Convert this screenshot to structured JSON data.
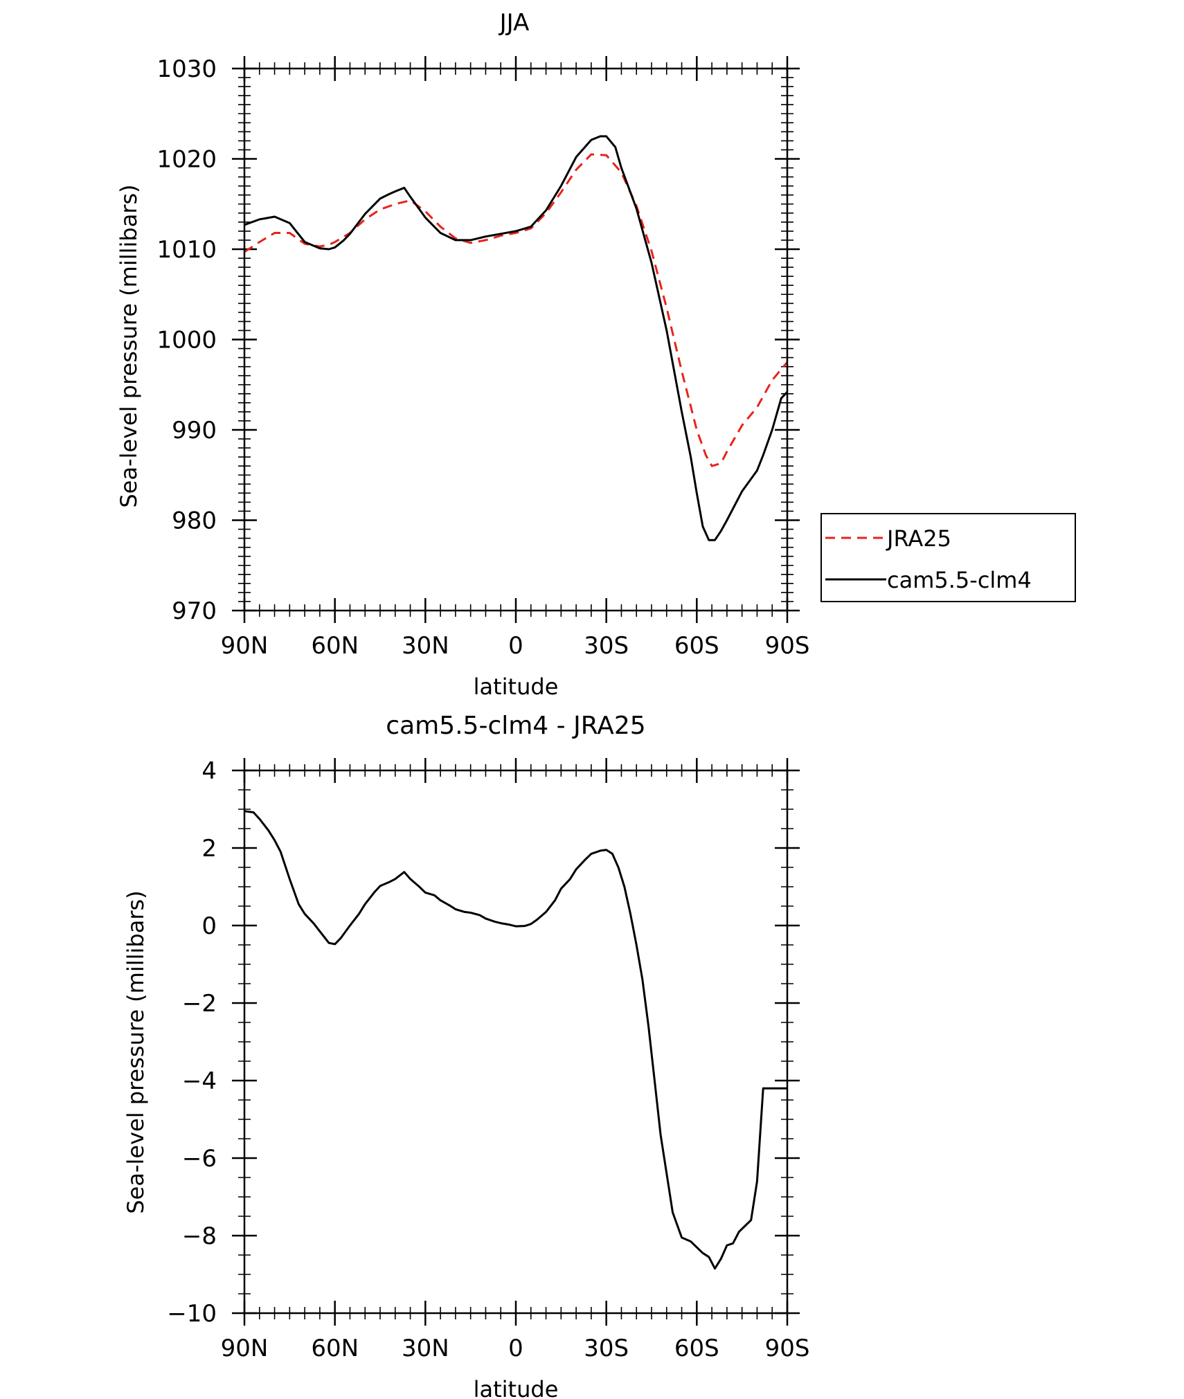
{
  "chart_data": [
    {
      "type": "line",
      "title": "JJA",
      "xlabel": "latitude",
      "ylabel": "Sea-level pressure (millibars)",
      "xlim": [
        90,
        -90
      ],
      "ylim": [
        970,
        1030
      ],
      "x_ticks": [
        {
          "value": 90,
          "label": "90N"
        },
        {
          "value": 60,
          "label": "60N"
        },
        {
          "value": 30,
          "label": "30N"
        },
        {
          "value": 0,
          "label": "0"
        },
        {
          "value": -30,
          "label": "30S"
        },
        {
          "value": -60,
          "label": "60S"
        },
        {
          "value": -90,
          "label": "90S"
        }
      ],
      "y_ticks": [
        {
          "value": 1030,
          "label": "1030"
        },
        {
          "value": 1020,
          "label": "1020"
        },
        {
          "value": 1010,
          "label": "1010"
        },
        {
          "value": 1000,
          "label": "1000"
        },
        {
          "value": 990,
          "label": "990"
        },
        {
          "value": 980,
          "label": "980"
        },
        {
          "value": 970,
          "label": "970"
        }
      ],
      "legend": "right-middle",
      "series": [
        {
          "name": "JRA25",
          "color": "#e8231c",
          "dash": "dashed",
          "x": [
            90,
            85,
            80,
            75,
            70,
            65,
            62,
            60,
            55,
            50,
            45,
            40,
            35,
            30,
            25,
            20,
            15,
            10,
            5,
            0,
            -5,
            -10,
            -15,
            -20,
            -25,
            -30,
            -35,
            -40,
            -45,
            -50,
            -55,
            -60,
            -63,
            -65,
            -68,
            -70,
            -75,
            -80,
            -85,
            -90
          ],
          "y": [
            1009.7,
            1010.8,
            1011.8,
            1011.8,
            1010.6,
            1010.3,
            1010.5,
            1010.8,
            1011.8,
            1013.3,
            1014.4,
            1015.0,
            1015.4,
            1014.2,
            1012.5,
            1011.2,
            1010.7,
            1011.0,
            1011.5,
            1011.8,
            1012.3,
            1014.0,
            1016.3,
            1018.8,
            1020.5,
            1020.4,
            1018.5,
            1014.8,
            1009.8,
            1003.5,
            996.5,
            990.0,
            987.2,
            986.0,
            986.3,
            987.6,
            990.5,
            992.5,
            995.5,
            997.5
          ]
        },
        {
          "name": "cam5.5-clm4",
          "color": "#000000",
          "dash": "solid",
          "x": [
            90,
            85,
            80,
            75,
            70,
            65,
            62,
            60,
            57,
            55,
            50,
            45,
            42,
            40,
            37,
            35,
            30,
            25,
            20,
            15,
            10,
            5,
            0,
            -5,
            -10,
            -15,
            -20,
            -25,
            -28,
            -30,
            -33,
            -35,
            -40,
            -45,
            -50,
            -55,
            -58,
            -60,
            -62,
            -64,
            -66,
            -68,
            -70,
            -75,
            -80,
            -82,
            -85,
            -88,
            -90
          ],
          "y": [
            1012.7,
            1013.3,
            1013.6,
            1012.9,
            1010.8,
            1010.1,
            1010.0,
            1010.2,
            1011.0,
            1011.7,
            1013.9,
            1015.6,
            1016.1,
            1016.4,
            1016.8,
            1015.8,
            1013.5,
            1011.8,
            1011.0,
            1011.0,
            1011.4,
            1011.7,
            1012.0,
            1012.5,
            1014.3,
            1017.0,
            1020.2,
            1022.1,
            1022.5,
            1022.5,
            1021.3,
            1019.0,
            1014.5,
            1008.5,
            1001.0,
            992.0,
            987.0,
            983.0,
            979.3,
            977.8,
            977.8,
            978.8,
            980.0,
            983.2,
            985.5,
            987.2,
            990.0,
            993.5,
            994.2
          ]
        }
      ]
    },
    {
      "type": "line",
      "title": "cam5.5-clm4 - JRA25",
      "xlabel": "latitude",
      "ylabel": "Sea-level pressure (millibars)",
      "xlim": [
        90,
        -90
      ],
      "ylim": [
        -10,
        4
      ],
      "x_ticks": [
        {
          "value": 90,
          "label": "90N"
        },
        {
          "value": 60,
          "label": "60N"
        },
        {
          "value": 30,
          "label": "30N"
        },
        {
          "value": 0,
          "label": "0"
        },
        {
          "value": -30,
          "label": "30S"
        },
        {
          "value": -60,
          "label": "60S"
        },
        {
          "value": -90,
          "label": "90S"
        }
      ],
      "y_ticks": [
        {
          "value": 4,
          "label": "4"
        },
        {
          "value": 2,
          "label": "2"
        },
        {
          "value": 0,
          "label": "0"
        },
        {
          "value": -2,
          "label": "−2"
        },
        {
          "value": -4,
          "label": "−4"
        },
        {
          "value": -6,
          "label": "−6"
        },
        {
          "value": -8,
          "label": "−8"
        },
        {
          "value": -10,
          "label": "−10"
        }
      ],
      "series": [
        {
          "color": "#000000",
          "dash": "solid",
          "x": [
            90,
            87,
            85,
            82,
            80,
            78,
            75,
            72,
            70,
            67,
            65,
            62,
            60,
            58,
            55,
            52,
            50,
            47,
            45,
            42,
            40,
            37,
            35,
            32,
            30,
            27,
            25,
            22,
            20,
            17,
            15,
            12,
            10,
            7,
            5,
            2,
            0,
            -3,
            -5,
            -7,
            -10,
            -13,
            -15,
            -18,
            -20,
            -23,
            -25,
            -28,
            -30,
            -32,
            -34,
            -36,
            -38,
            -40,
            -42,
            -44,
            -46,
            -48,
            -50,
            -52,
            -55,
            -58,
            -60,
            -62,
            -64,
            -66,
            -68,
            -70,
            -72,
            -74,
            -76,
            -78,
            -80,
            -82,
            -84,
            -86,
            -88,
            -90
          ],
          "y": [
            2.95,
            2.92,
            2.75,
            2.45,
            2.2,
            1.9,
            1.2,
            0.55,
            0.3,
            0.05,
            -0.15,
            -0.45,
            -0.48,
            -0.32,
            0.0,
            0.3,
            0.55,
            0.85,
            1.02,
            1.12,
            1.2,
            1.38,
            1.2,
            1.0,
            0.85,
            0.78,
            0.65,
            0.52,
            0.42,
            0.35,
            0.33,
            0.27,
            0.18,
            0.1,
            0.06,
            0.02,
            -0.02,
            -0.01,
            0.04,
            0.15,
            0.35,
            0.65,
            0.95,
            1.2,
            1.45,
            1.7,
            1.85,
            1.93,
            1.95,
            1.85,
            1.5,
            1.0,
            0.3,
            -0.5,
            -1.4,
            -2.6,
            -4.0,
            -5.4,
            -6.4,
            -7.4,
            -8.05,
            -8.15,
            -8.3,
            -8.45,
            -8.55,
            -8.85,
            -8.6,
            -8.25,
            -8.2,
            -7.9,
            -7.75,
            -7.6,
            -6.6,
            -4.2,
            -4.2,
            -4.2,
            -4.2,
            -4.2
          ]
        }
      ]
    }
  ]
}
